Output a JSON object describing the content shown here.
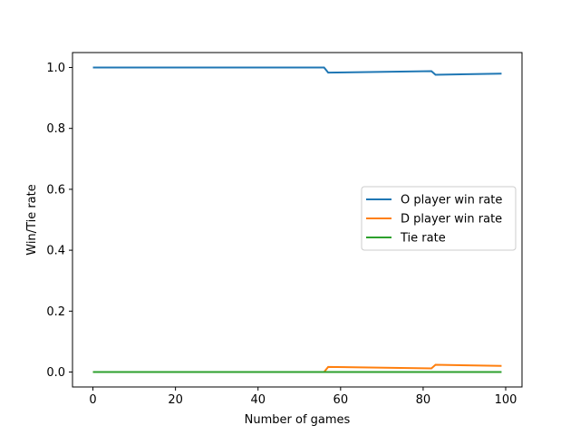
{
  "chart_data": {
    "type": "line",
    "title": "",
    "xlabel": "Number of games",
    "ylabel": "Win/Tie rate",
    "xlim": [
      -4.95,
      103.95
    ],
    "ylim": [
      -0.049,
      1.049
    ],
    "xticks": [
      0,
      20,
      40,
      60,
      80,
      100
    ],
    "yticks": [
      0.0,
      0.2,
      0.4,
      0.6,
      0.8,
      1.0
    ],
    "grid": false,
    "legend_position": "center-right",
    "series": [
      {
        "name": "O player win rate",
        "color": "#1f77b4",
        "points": [
          [
            0,
            1.0
          ],
          [
            56,
            1.0
          ],
          [
            57,
            0.983
          ],
          [
            82,
            0.988
          ],
          [
            83,
            0.976
          ],
          [
            99,
            0.98
          ]
        ]
      },
      {
        "name": "D player win rate",
        "color": "#ff7f0e",
        "points": [
          [
            0,
            0.0
          ],
          [
            56,
            0.0
          ],
          [
            57,
            0.017
          ],
          [
            82,
            0.012
          ],
          [
            83,
            0.024
          ],
          [
            99,
            0.02
          ]
        ]
      },
      {
        "name": "Tie rate",
        "color": "#2ca02c",
        "points": [
          [
            0,
            0.0
          ],
          [
            99,
            0.0
          ]
        ]
      }
    ]
  }
}
